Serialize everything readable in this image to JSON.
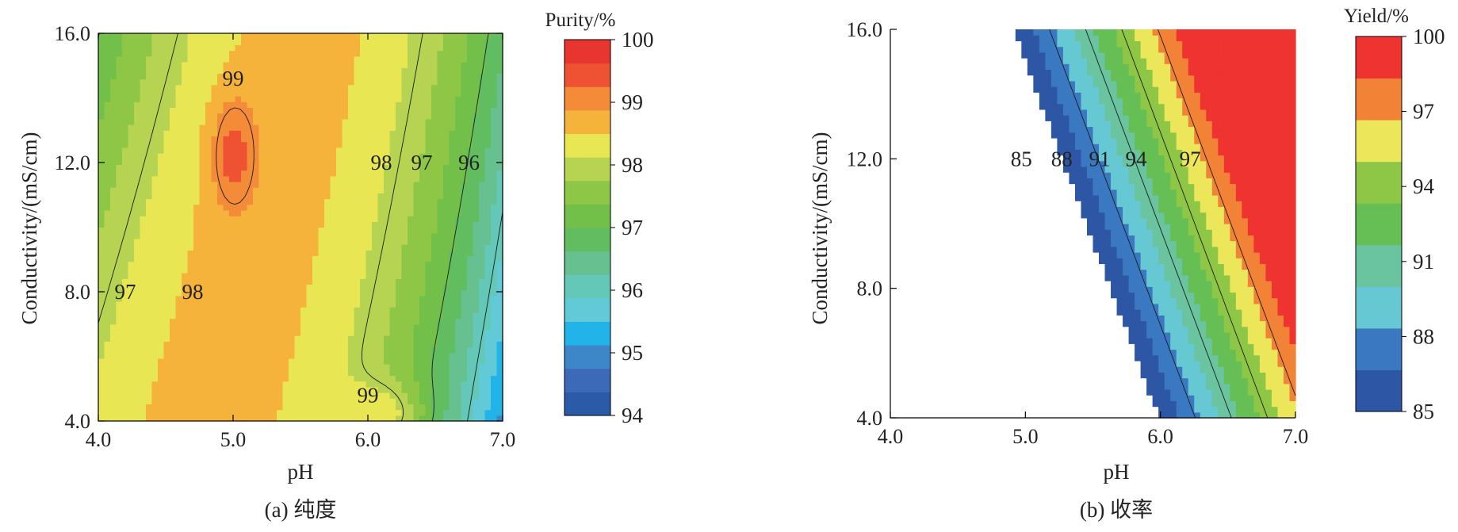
{
  "chart_data": [
    {
      "type": "contour",
      "caption": "(a) 纯度",
      "xlabel": "pH",
      "ylabel": "Conductivity/(mS/cm)",
      "xlim": [
        4.0,
        7.0
      ],
      "ylim": [
        4.0,
        16.0
      ],
      "xticks": [
        "4.0",
        "5.0",
        "6.0",
        "7.0"
      ],
      "yticks": [
        "4.0",
        "8.0",
        "12.0",
        "16.0"
      ],
      "colorbar_title": "Purity/%",
      "colorbar_range": [
        94,
        100
      ],
      "colorbar_tick_values": [
        94,
        95,
        96,
        97,
        98,
        99,
        100
      ],
      "colorbar_ticks": [
        "94",
        "95",
        "96",
        "97",
        "98",
        "99",
        "100"
      ],
      "colorbar_colors": [
        "#2a5aa8",
        "#3c6ab8",
        "#3d86c8",
        "#22b4e9",
        "#62c9d6",
        "#63c8b7",
        "#66c08f",
        "#62bc60",
        "#72c049",
        "#8ec745",
        "#b6d452",
        "#e9e654",
        "#f5b33c",
        "#f38b38",
        "#ee5233",
        "#e8352f"
      ],
      "contour_labels": [
        {
          "text": "99",
          "x": 5.0,
          "y": 14.6
        },
        {
          "text": "98",
          "x": 6.1,
          "y": 12.0
        },
        {
          "text": "97",
          "x": 6.4,
          "y": 12.0
        },
        {
          "text": "96",
          "x": 6.75,
          "y": 12.0
        },
        {
          "text": "97",
          "x": 4.2,
          "y": 8.0
        },
        {
          "text": "98",
          "x": 4.7,
          "y": 8.0
        },
        {
          "text": "99",
          "x": 6.0,
          "y": 4.8
        }
      ]
    },
    {
      "type": "contour",
      "caption": "(b) 收率",
      "xlabel": "pH",
      "ylabel": "Conductivity/(mS/cm)",
      "xlim": [
        4.0,
        7.0
      ],
      "ylim": [
        4.0,
        16.0
      ],
      "xticks": [
        "4.0",
        "5.0",
        "6.0",
        "7.0"
      ],
      "yticks": [
        "4.0",
        "8.0",
        "12.0",
        "16.0"
      ],
      "colorbar_title": "Yield/%",
      "colorbar_range": [
        85,
        100
      ],
      "colorbar_tick_values": [
        85,
        88,
        91,
        94,
        97,
        100
      ],
      "colorbar_ticks": [
        "85",
        "88",
        "91",
        "94",
        "97",
        "100"
      ],
      "colorbar_colors": [
        "#2d56a5",
        "#3a78c2",
        "#66c8d3",
        "#6ac49f",
        "#66bf55",
        "#8ec645",
        "#ece75a",
        "#f28336",
        "#ee3330"
      ],
      "contour_labels": [
        {
          "text": "85",
          "x": 4.97,
          "y": 12.0
        },
        {
          "text": "88",
          "x": 5.27,
          "y": 12.0
        },
        {
          "text": "91",
          "x": 5.55,
          "y": 12.0
        },
        {
          "text": "94",
          "x": 5.82,
          "y": 12.0
        },
        {
          "text": "97",
          "x": 6.22,
          "y": 12.0
        }
      ]
    }
  ]
}
